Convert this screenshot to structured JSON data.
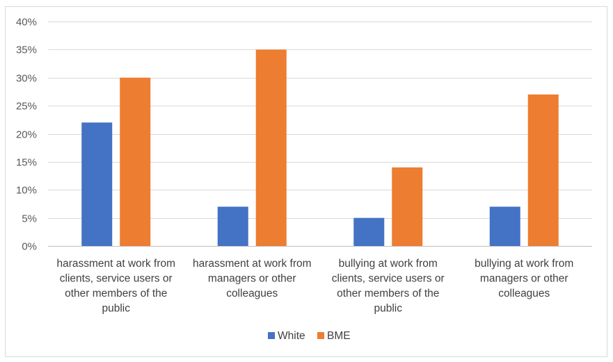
{
  "chart_data": {
    "type": "bar",
    "title": "",
    "xlabel": "",
    "ylabel": "",
    "ylim": [
      0,
      40
    ],
    "yticks": [
      0,
      5,
      10,
      15,
      20,
      25,
      30,
      35,
      40
    ],
    "ytick_labels": [
      "0%",
      "5%",
      "10%",
      "15%",
      "20%",
      "25%",
      "30%",
      "35%",
      "40%"
    ],
    "grid": true,
    "legend_position": "bottom",
    "categories": [
      [
        "harassment at work from",
        "clients, service users or",
        "other members of the",
        "public"
      ],
      [
        "harassment at work from",
        "managers or other",
        "colleagues"
      ],
      [
        "bullying at work from",
        "clients, service users or",
        "other members of the",
        "public"
      ],
      [
        "bullying at work from",
        "managers or other",
        "colleagues"
      ]
    ],
    "series": [
      {
        "name": "White",
        "color": "#4472c4",
        "values": [
          22,
          7,
          5,
          7
        ]
      },
      {
        "name": "BME",
        "color": "#ed7d31",
        "values": [
          30,
          35,
          14,
          27
        ]
      }
    ],
    "gridline_color": "#d9d9d9",
    "axis_color": "#bfbfbf"
  }
}
